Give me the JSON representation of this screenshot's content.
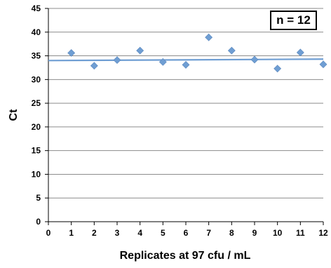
{
  "chart_data": {
    "type": "scatter",
    "xlabel": "Replicates at 97 cfu / mL",
    "ylabel": "Ct",
    "xlim": [
      0,
      12
    ],
    "ylim": [
      0,
      45
    ],
    "x_ticks": [
      0,
      1,
      2,
      3,
      4,
      5,
      6,
      7,
      8,
      9,
      10,
      11,
      12
    ],
    "y_ticks": [
      0,
      5,
      10,
      15,
      20,
      25,
      30,
      35,
      40,
      45
    ],
    "grid": "horizontal",
    "annotation": "n = 12",
    "series": [
      {
        "x": [
          1,
          2,
          3,
          4,
          5,
          6,
          7,
          8,
          9,
          10,
          11,
          12
        ],
        "y": [
          35.6,
          32.9,
          34.1,
          36.1,
          33.7,
          33.1,
          38.9,
          36.1,
          34.2,
          32.3,
          35.7,
          33.2
        ],
        "marker": "diamond",
        "color": "#6f9ed3"
      }
    ],
    "trendline": {
      "type": "linear",
      "y_start": 34.0,
      "y_end": 34.3,
      "color": "#6f9ed3"
    }
  }
}
